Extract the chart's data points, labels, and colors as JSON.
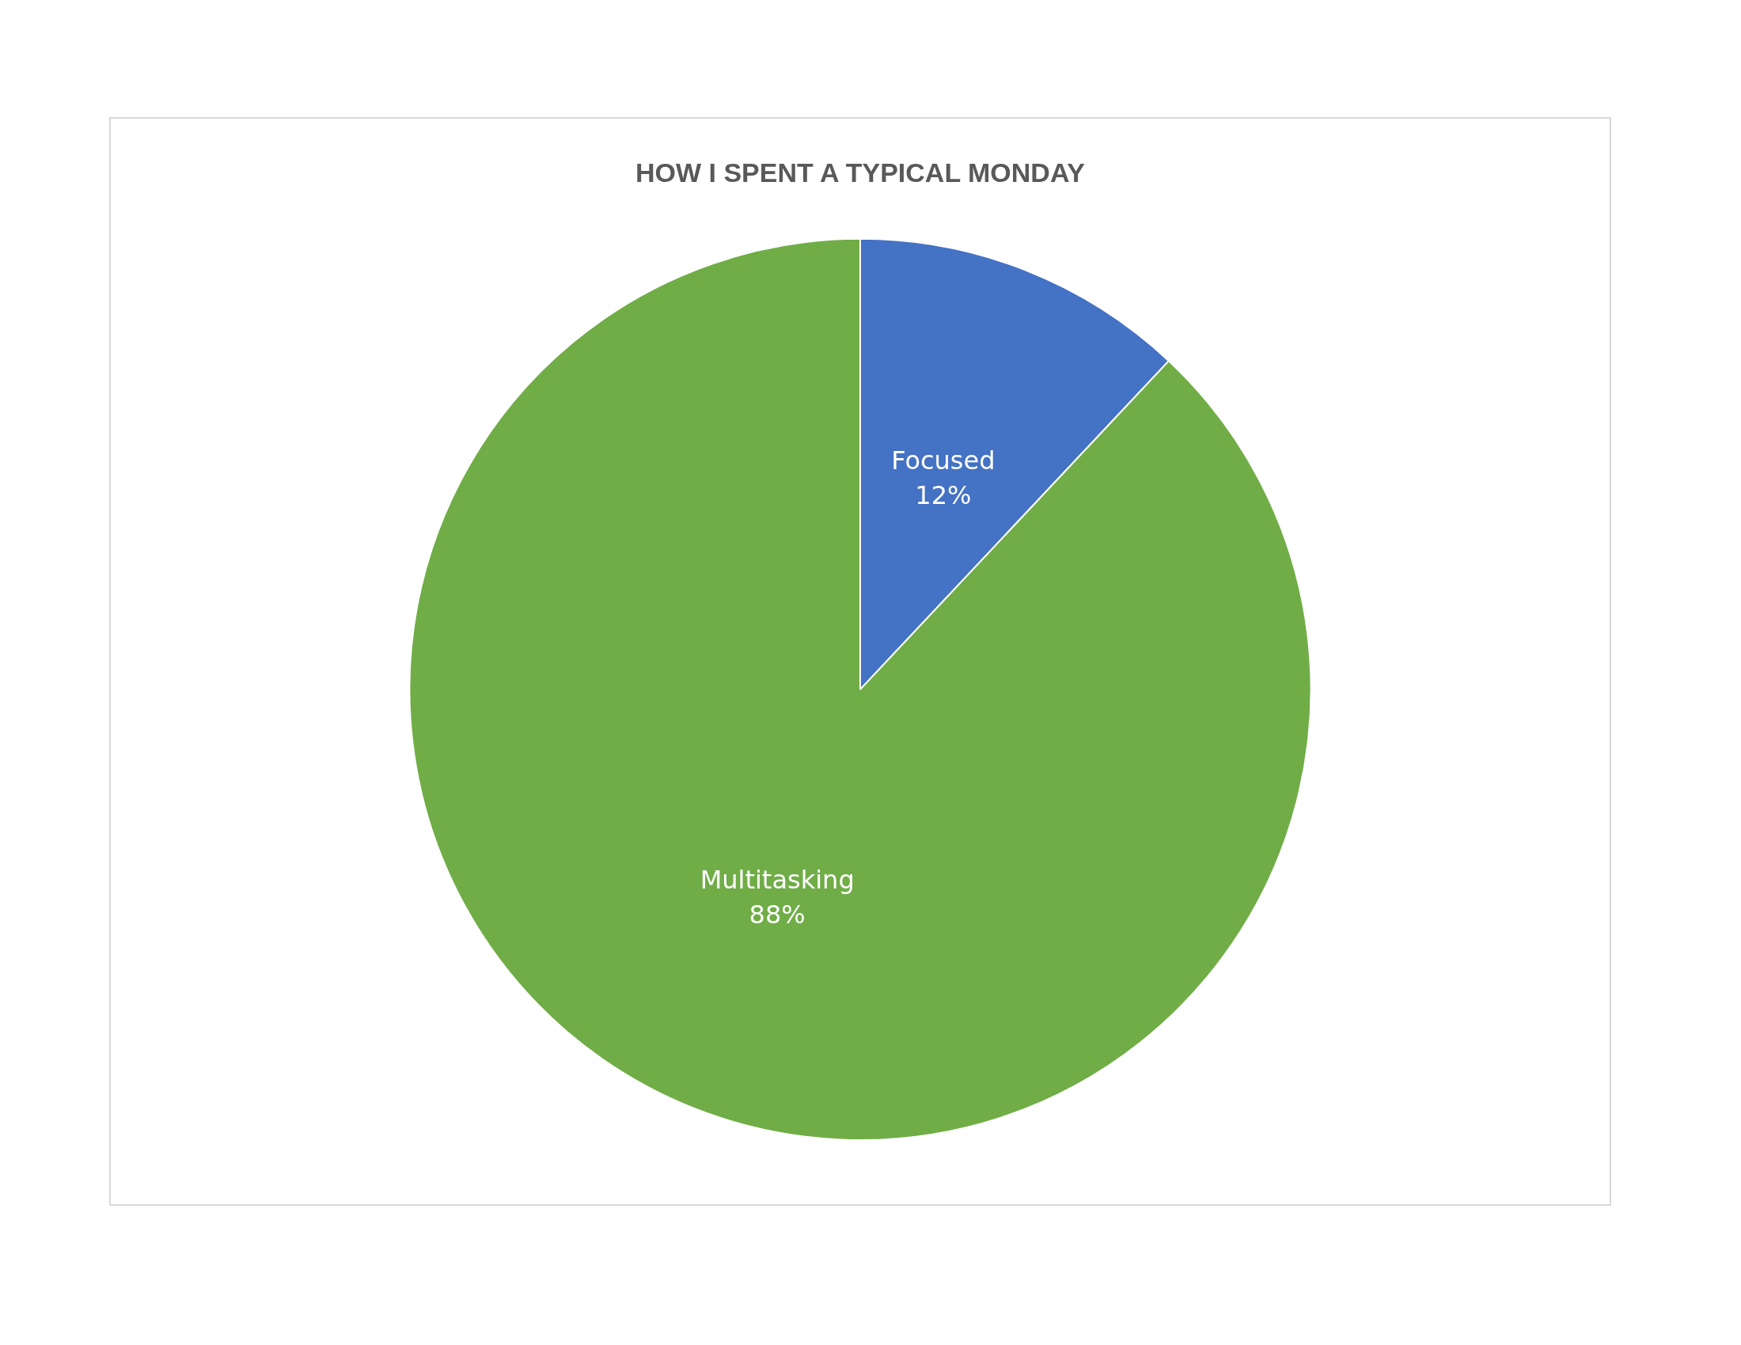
{
  "chart_data": {
    "type": "pie",
    "title": "HOW I SPENT A TYPICAL MONDAY",
    "categories": [
      "Focused",
      "Multitasking"
    ],
    "values": [
      12,
      88
    ],
    "colors": [
      "#4472c4",
      "#70ad47"
    ],
    "value_labels": [
      "12%",
      "88%"
    ]
  }
}
